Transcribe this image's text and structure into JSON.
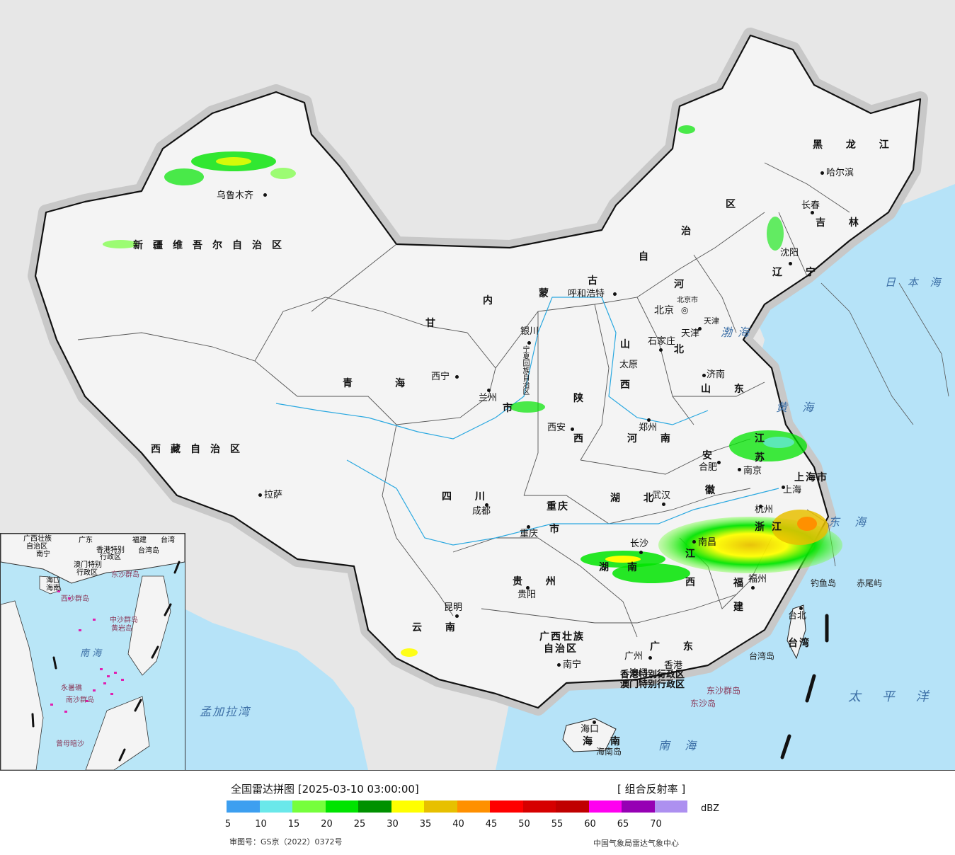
{
  "legend": {
    "title": "全国雷达拼图 [2025-03-10 03:00:00]",
    "product": "[ 组合反射率 ]",
    "unit": "dBZ",
    "review_number": "审图号：GS京（2022）0372号",
    "source": "中国气象局雷达气象中心",
    "colors": [
      "#3d9ff0",
      "#6ae8ea",
      "#76ff3c",
      "#00e400",
      "#009100",
      "#ffff00",
      "#e7c000",
      "#ff9000",
      "#ff0000",
      "#d60000",
      "#c00000",
      "#ff00f0",
      "#9600b4",
      "#ad90f0"
    ],
    "ticks": [
      "5",
      "10",
      "15",
      "20",
      "25",
      "30",
      "35",
      "40",
      "45",
      "50",
      "55",
      "60",
      "65",
      "70"
    ]
  },
  "cities": [
    {
      "name": "乌鲁木齐",
      "key": "urumqi"
    },
    {
      "name": "拉萨",
      "key": "lhasa"
    },
    {
      "name": "西宁",
      "key": "xining"
    },
    {
      "name": "兰州",
      "key": "lanzhou"
    },
    {
      "name": "银川",
      "key": "yinchuan"
    },
    {
      "name": "呼和浩特",
      "key": "hohhot"
    },
    {
      "name": "北京",
      "key": "beijing"
    },
    {
      "name": "天津",
      "key": "tianjin"
    },
    {
      "name": "石家庄",
      "key": "shijiazhuang"
    },
    {
      "name": "太原",
      "key": "taiyuan"
    },
    {
      "name": "济南",
      "key": "jinan"
    },
    {
      "name": "郑州",
      "key": "zhengzhou"
    },
    {
      "name": "西安",
      "key": "xian"
    },
    {
      "name": "成都",
      "key": "chengdu"
    },
    {
      "name": "重庆",
      "key": "chongqing"
    },
    {
      "name": "武汉",
      "key": "wuhan"
    },
    {
      "name": "合肥",
      "key": "hefei"
    },
    {
      "name": "南京",
      "key": "nanjing"
    },
    {
      "name": "上海",
      "key": "shanghai"
    },
    {
      "name": "杭州",
      "key": "hangzhou"
    },
    {
      "name": "南昌",
      "key": "nanchang"
    },
    {
      "name": "长沙",
      "key": "changsha"
    },
    {
      "name": "贵阳",
      "key": "guiyang"
    },
    {
      "name": "昆明",
      "key": "kunming"
    },
    {
      "name": "南宁",
      "key": "nanning"
    },
    {
      "name": "广州",
      "key": "guangzhou"
    },
    {
      "name": "香港",
      "key": "hongkong"
    },
    {
      "name": "澳门",
      "key": "macau"
    },
    {
      "name": "福州",
      "key": "fuzhou"
    },
    {
      "name": "台北",
      "key": "taipei"
    },
    {
      "name": "海口",
      "key": "haikou"
    },
    {
      "name": "沈阳",
      "key": "shenyang"
    },
    {
      "name": "长春",
      "key": "changchun"
    },
    {
      "name": "哈尔滨",
      "key": "harbin"
    }
  ],
  "provinces": {
    "xinjiang": "新疆维吾尔自治区",
    "xizang": "西藏自治区",
    "qinghai_a": "青",
    "qinghai_b": "海",
    "gansu": "甘",
    "neimeng_a": "内",
    "neimeng_b": "蒙",
    "neimeng_c": "古",
    "neimeng_d": "自",
    "neimeng_e": "治",
    "neimeng_f": "区",
    "heilongjiang": "黑 龙 江",
    "jilin": "吉 林",
    "liaoning": "辽 宁",
    "hebei_a": "河",
    "hebei_b": "北",
    "shanxi_a": "山",
    "shanxi_b": "西",
    "shandong": "山 东",
    "henan": "河 南",
    "shaanxi_a": "陕",
    "shaanxi_b": "西",
    "sichuan": "四 川",
    "chongqing": "重庆",
    "chongqing_b": "市",
    "hubei": "湖 北",
    "anhui_a": "安",
    "anhui_b": "徽",
    "jiangsu_a": "江",
    "jiangsu_b": "苏",
    "shanghaishi": "上海市",
    "zhejiang_a": "浙",
    "zhejiang_b": "江",
    "jiangxi_a": "江",
    "jiangxi_b": "西",
    "hunan_a": "湖",
    "hunan_b": "南",
    "guizhou": "贵 州",
    "yunnan": "云 南",
    "guangxi_a": "广西壮族",
    "guangxi_b": "自治区",
    "guangdong": "广 东",
    "fujian_a": "福",
    "fujian_b": "建",
    "taiwan": "台湾",
    "hainan_a": "海",
    "hainan_b": "南",
    "ningxia": "宁夏回族自治区",
    "gansu_city": "市",
    "hk_sar": "香港特别行政区",
    "mo_sar": "澳门特别行政区",
    "beijing_shi": "北京市",
    "tianjin_shi": "天津"
  },
  "seas": {
    "bohai": "渤海",
    "huanghai": "黄 海",
    "donghai": "东 海",
    "nanhai": "南 海",
    "ribenhai": "日 本 海",
    "taipingyang": "太 平 洋",
    "mengjialawan": "孟加拉湾"
  },
  "islands": {
    "diaoyu": "钓鱼岛",
    "chiwei": "赤尾屿",
    "dongsha_qd": "东沙群岛",
    "dongsha": "东沙岛",
    "taiwan_dao": "台湾岛",
    "hainan_dao": "海南岛"
  },
  "inset": {
    "labels": [
      "广西壮族",
      "自治区",
      "南宁",
      "广东",
      "福建",
      "台湾",
      "香港特别",
      "行政区",
      "澳门特别",
      "行政区",
      "海口",
      "东沙群岛",
      "海南",
      "西沙群岛",
      "中沙群岛",
      "黄岩岛",
      "南 海",
      "永暑礁",
      "南沙群岛",
      "曾母暗沙",
      "台湾岛"
    ]
  }
}
